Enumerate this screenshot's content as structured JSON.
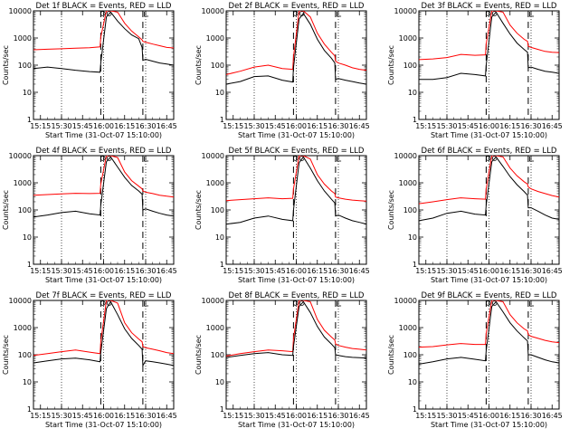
{
  "chart_data": {
    "type": "line",
    "scale_y": "log",
    "ylim": [
      1,
      10000
    ],
    "ylabel": "Counts/sec",
    "xlabel": "Start Time (31-Oct-07 15:10:00)",
    "x_tick_labels": [
      "15:15",
      "15:30",
      "15:45",
      "16:00",
      "16:15",
      "16:30",
      "16:45"
    ],
    "x_ticks_min": [
      5,
      20,
      35,
      50,
      65,
      80,
      95
    ],
    "xlim_min": [
      0,
      100
    ],
    "y_ticks": [
      1,
      10,
      100,
      1000,
      10000
    ],
    "y_tick_labels": [
      "1",
      "10",
      "100",
      "1000",
      "10000"
    ],
    "dotted_lines_min": [
      20,
      50,
      80
    ],
    "dashed_lines_min": [
      48,
      78
    ],
    "series_colors": {
      "events": "#000000",
      "lld": "#ff0000"
    },
    "panels": [
      {
        "title": "Det 1f BLACK = Events, RED = LLD",
        "x": [
          0,
          10,
          20,
          30,
          40,
          47.5,
          48,
          52,
          55,
          60,
          65,
          70,
          75,
          77.5,
          78,
          80,
          85,
          90,
          95,
          100
        ],
        "events": [
          75,
          85,
          75,
          65,
          58,
          55,
          120,
          6000,
          9000,
          4200,
          2200,
          1300,
          950,
          450,
          150,
          165,
          140,
          120,
          110,
          100
        ],
        "lld": [
          370,
          385,
          400,
          420,
          440,
          470,
          1100,
          10000,
          10000,
          9000,
          3500,
          1800,
          1100,
          850,
          750,
          700,
          600,
          520,
          450,
          430
        ]
      },
      {
        "title": "Det 2f BLACK = Events, RED = LLD",
        "x": [
          0,
          10,
          20,
          30,
          40,
          47.5,
          48,
          52,
          55,
          60,
          65,
          70,
          75,
          77.5,
          78,
          80,
          85,
          90,
          95,
          100
        ],
        "events": [
          20,
          25,
          38,
          40,
          28,
          24,
          80,
          5000,
          8000,
          3200,
          900,
          350,
          180,
          120,
          30,
          32,
          28,
          25,
          22,
          20
        ],
        "lld": [
          45,
          60,
          85,
          100,
          75,
          70,
          200,
          10000,
          10000,
          6000,
          1500,
          600,
          300,
          220,
          140,
          120,
          100,
          80,
          70,
          65
        ]
      },
      {
        "title": "Det 3f BLACK = Events, RED = LLD",
        "x": [
          0,
          10,
          20,
          30,
          40,
          47.5,
          48,
          52,
          55,
          60,
          65,
          70,
          75,
          77.5,
          78,
          80,
          85,
          90,
          95,
          100
        ],
        "events": [
          30,
          30,
          35,
          50,
          45,
          40,
          100,
          6000,
          9000,
          3500,
          1400,
          650,
          380,
          300,
          80,
          85,
          70,
          60,
          55,
          50
        ],
        "lld": [
          160,
          170,
          190,
          250,
          230,
          240,
          600,
          10000,
          10000,
          9000,
          3000,
          1500,
          900,
          750,
          500,
          450,
          380,
          320,
          300,
          290
        ]
      },
      {
        "title": "Det 4f BLACK = Events, RED = LLD",
        "x": [
          0,
          10,
          20,
          30,
          40,
          47.5,
          48,
          52,
          55,
          60,
          65,
          70,
          75,
          77.5,
          78,
          80,
          85,
          90,
          95,
          100
        ],
        "events": [
          55,
          65,
          80,
          90,
          72,
          65,
          150,
          6000,
          9000,
          3800,
          1600,
          800,
          500,
          380,
          100,
          110,
          90,
          75,
          65,
          60
        ],
        "lld": [
          350,
          370,
          390,
          410,
          400,
          410,
          900,
          10000,
          10000,
          8500,
          2500,
          1200,
          750,
          600,
          500,
          450,
          400,
          350,
          320,
          300
        ]
      },
      {
        "title": "Det 5f BLACK = Events, RED = LLD",
        "x": [
          0,
          10,
          20,
          30,
          40,
          47.5,
          48,
          52,
          55,
          60,
          65,
          70,
          75,
          77.5,
          78,
          80,
          85,
          90,
          95,
          100
        ],
        "events": [
          30,
          35,
          50,
          60,
          45,
          40,
          100,
          5500,
          9000,
          3500,
          1200,
          500,
          250,
          180,
          60,
          65,
          50,
          40,
          35,
          30
        ],
        "lld": [
          220,
          240,
          260,
          280,
          260,
          270,
          600,
          10000,
          10000,
          7500,
          2000,
          900,
          500,
          400,
          300,
          280,
          250,
          230,
          220,
          210
        ]
      },
      {
        "title": "Det 6f BLACK = Events, RED = LLD",
        "x": [
          0,
          10,
          20,
          30,
          40,
          47.5,
          48,
          52,
          55,
          60,
          65,
          70,
          75,
          77.5,
          78,
          80,
          85,
          90,
          95,
          100
        ],
        "events": [
          40,
          50,
          75,
          90,
          70,
          65,
          150,
          6000,
          9000,
          4000,
          1700,
          850,
          480,
          350,
          120,
          120,
          90,
          65,
          50,
          45
        ],
        "lld": [
          170,
          200,
          240,
          280,
          260,
          250,
          600,
          10000,
          10000,
          9000,
          3500,
          1800,
          1100,
          900,
          700,
          600,
          480,
          400,
          340,
          300
        ]
      },
      {
        "title": "Det 7f BLACK = Events, RED = LLD",
        "x": [
          0,
          10,
          20,
          30,
          40,
          47.5,
          48,
          52,
          55,
          60,
          65,
          70,
          75,
          77.5,
          78,
          80,
          85,
          90,
          95,
          100
        ],
        "events": [
          50,
          60,
          70,
          75,
          65,
          55,
          120,
          5000,
          9000,
          3000,
          900,
          400,
          220,
          160,
          40,
          60,
          55,
          50,
          45,
          40
        ],
        "lld": [
          95,
          110,
          130,
          150,
          125,
          110,
          300,
          10000,
          10000,
          8000,
          1500,
          650,
          380,
          300,
          200,
          180,
          160,
          140,
          120,
          110
        ]
      },
      {
        "title": "Det 8f BLACK = Events, RED = LLD",
        "x": [
          0,
          10,
          20,
          30,
          40,
          47.5,
          48,
          52,
          55,
          60,
          65,
          70,
          75,
          77.5,
          78,
          80,
          85,
          90,
          95,
          100
        ],
        "events": [
          80,
          95,
          110,
          120,
          100,
          95,
          200,
          6000,
          9000,
          3600,
          1100,
          450,
          250,
          180,
          100,
          95,
          85,
          80,
          78,
          75
        ],
        "lld": [
          90,
          110,
          130,
          150,
          140,
          130,
          400,
          10000,
          10000,
          9000,
          2000,
          800,
          450,
          350,
          250,
          220,
          190,
          170,
          160,
          150
        ]
      },
      {
        "title": "Det 9f BLACK = Events, RED = LLD",
        "x": [
          0,
          10,
          20,
          30,
          40,
          47.5,
          48,
          52,
          55,
          60,
          65,
          70,
          75,
          77.5,
          78,
          80,
          85,
          90,
          95,
          100
        ],
        "events": [
          45,
          55,
          70,
          80,
          68,
          60,
          140,
          6000,
          9000,
          3800,
          1500,
          750,
          420,
          320,
          100,
          100,
          80,
          65,
          55,
          50
        ],
        "lld": [
          190,
          200,
          230,
          260,
          240,
          240,
          600,
          10000,
          10000,
          9000,
          3000,
          1500,
          900,
          750,
          550,
          480,
          400,
          340,
          300,
          280
        ]
      }
    ]
  }
}
